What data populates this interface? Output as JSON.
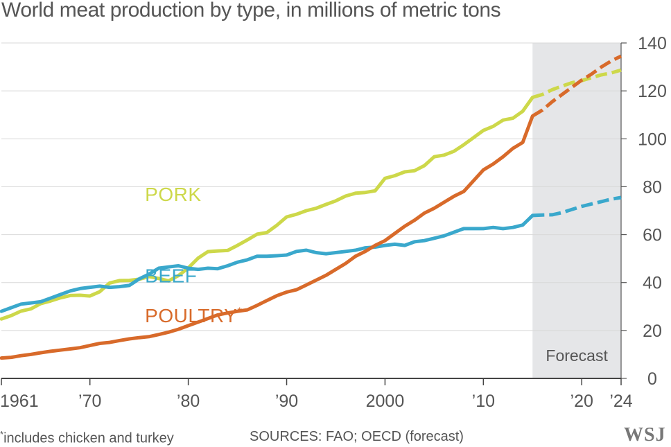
{
  "title": "World meat production by type, in millions of metric tons",
  "footnote_mark": "*",
  "footnote_text": "includes chicken and turkey",
  "sources": "SOURCES: FAO; OECD (forecast)",
  "logo": "WSJ",
  "colors": {
    "pork": "#cdd84a",
    "beef": "#3aa8cc",
    "poultry": "#d86a2a",
    "forecast_bg": "#e5e6e8",
    "axis": "#555555",
    "grid": "#d8d8d8"
  },
  "chart_data": {
    "type": "line",
    "title": "World meat production by type, in millions of metric tons",
    "xlabel": "",
    "ylabel": "",
    "xlim": [
      1961,
      2024
    ],
    "ylim": [
      0,
      140
    ],
    "grid": true,
    "forecast": {
      "label": "Forecast",
      "start": 2015,
      "end": 2024
    },
    "x_ticks": [
      {
        "value": 1961,
        "label": "1961"
      },
      {
        "value": 1970,
        "label": "’70"
      },
      {
        "value": 1980,
        "label": "’80"
      },
      {
        "value": 1990,
        "label": "’90"
      },
      {
        "value": 2000,
        "label": "2000"
      },
      {
        "value": 2010,
        "label": "’10"
      },
      {
        "value": 2020,
        "label": "’20"
      },
      {
        "value": 2024,
        "label": "’24"
      }
    ],
    "y_ticks": [
      {
        "value": 0,
        "label": "0"
      },
      {
        "value": 20,
        "label": "20"
      },
      {
        "value": 40,
        "label": "40"
      },
      {
        "value": 60,
        "label": "60"
      },
      {
        "value": 80,
        "label": "80"
      },
      {
        "value": 100,
        "label": "100"
      },
      {
        "value": 120,
        "label": "120"
      },
      {
        "value": 140,
        "label": "140"
      }
    ],
    "series": [
      {
        "key": "pork",
        "name": "PORK",
        "label_year": 1975.6,
        "label_value": 74,
        "x": [
          1961,
          1962,
          1963,
          1964,
          1965,
          1966,
          1967,
          1968,
          1969,
          1970,
          1971,
          1972,
          1973,
          1974,
          1975,
          1976,
          1977,
          1978,
          1979,
          1980,
          1981,
          1982,
          1983,
          1984,
          1985,
          1986,
          1987,
          1988,
          1989,
          1990,
          1991,
          1992,
          1993,
          1994,
          1995,
          1996,
          1997,
          1998,
          1999,
          2000,
          2001,
          2002,
          2003,
          2004,
          2005,
          2006,
          2007,
          2008,
          2009,
          2010,
          2011,
          2012,
          2013,
          2014,
          2015,
          2016,
          2017,
          2018,
          2019,
          2020,
          2021,
          2022,
          2023,
          2024
        ],
        "values": [
          24.8,
          26.2,
          28.1,
          29.0,
          31.2,
          32.3,
          33.6,
          34.6,
          34.7,
          34.4,
          36.2,
          39.8,
          40.8,
          40.9,
          41.4,
          42.5,
          41.7,
          40.7,
          42.9,
          46.1,
          50.2,
          52.9,
          53.2,
          53.4,
          55.5,
          57.8,
          60.2,
          60.9,
          63.9,
          67.4,
          68.5,
          70.0,
          71.0,
          72.6,
          74.1,
          76.1,
          77.3,
          77.6,
          78.3,
          83.5,
          84.6,
          86.2,
          86.7,
          88.8,
          92.5,
          93.2,
          94.8,
          97.5,
          100.5,
          103.5,
          105.2,
          107.8,
          108.6,
          111.5,
          117.3,
          118.5,
          120.5,
          122.0,
          123.4,
          124.3,
          125.5,
          126.7,
          127.5,
          128.7
        ],
        "forecast_from": 2015
      },
      {
        "key": "beef",
        "name": "BEEF",
        "label_year": 1975.6,
        "label_value": 40,
        "x": [
          1961,
          1962,
          1963,
          1964,
          1965,
          1966,
          1967,
          1968,
          1969,
          1970,
          1971,
          1972,
          1973,
          1974,
          1975,
          1976,
          1977,
          1978,
          1979,
          1980,
          1981,
          1982,
          1983,
          1984,
          1985,
          1986,
          1987,
          1988,
          1989,
          1990,
          1991,
          1992,
          1993,
          1994,
          1995,
          1996,
          1997,
          1998,
          1999,
          2000,
          2001,
          2002,
          2003,
          2004,
          2005,
          2006,
          2007,
          2008,
          2009,
          2010,
          2011,
          2012,
          2013,
          2014,
          2015,
          2016,
          2017,
          2018,
          2019,
          2020,
          2021,
          2022,
          2023,
          2024
        ],
        "values": [
          28.0,
          29.5,
          31.0,
          31.5,
          32.0,
          33.5,
          35.0,
          36.5,
          37.5,
          38.0,
          38.5,
          38.0,
          38.3,
          38.8,
          41.5,
          43.5,
          46.0,
          46.5,
          47.0,
          46.0,
          45.5,
          46.0,
          45.8,
          47.0,
          48.5,
          49.5,
          51.0,
          51.0,
          51.2,
          51.5,
          53.0,
          53.5,
          52.5,
          52.0,
          52.5,
          53.0,
          53.5,
          54.5,
          54.8,
          55.5,
          56.0,
          55.5,
          57.0,
          57.5,
          58.5,
          59.5,
          61.0,
          62.5,
          62.5,
          62.5,
          63.0,
          62.5,
          63.0,
          64.0,
          68.0,
          68.2,
          68.3,
          69.2,
          70.5,
          71.8,
          72.8,
          73.8,
          74.8,
          75.5
        ],
        "forecast_from": 2015
      },
      {
        "key": "poultry",
        "name": "POULTRY",
        "name_mark": "*",
        "label_year": 1975.6,
        "label_value": 23.5,
        "x": [
          1961,
          1962,
          1963,
          1964,
          1965,
          1966,
          1967,
          1968,
          1969,
          1970,
          1971,
          1972,
          1973,
          1974,
          1975,
          1976,
          1977,
          1978,
          1979,
          1980,
          1981,
          1982,
          1983,
          1984,
          1985,
          1986,
          1987,
          1988,
          1989,
          1990,
          1991,
          1992,
          1993,
          1994,
          1995,
          1996,
          1997,
          1998,
          1999,
          2000,
          2001,
          2002,
          2003,
          2004,
          2005,
          2006,
          2007,
          2008,
          2009,
          2010,
          2011,
          2012,
          2013,
          2014,
          2015,
          2016,
          2017,
          2018,
          2019,
          2020,
          2021,
          2022,
          2023,
          2024
        ],
        "values": [
          8.5,
          8.8,
          9.5,
          10.0,
          10.7,
          11.3,
          11.8,
          12.3,
          12.8,
          13.7,
          14.6,
          15.0,
          15.8,
          16.5,
          17.0,
          17.4,
          18.3,
          19.3,
          20.5,
          22.0,
          23.5,
          25.0,
          26.5,
          27.3,
          28.0,
          28.6,
          30.5,
          32.5,
          34.5,
          36.0,
          37.0,
          39.0,
          41.0,
          43.0,
          45.5,
          48.0,
          51.0,
          53.0,
          55.5,
          57.5,
          60.5,
          63.5,
          66.0,
          69.0,
          71.0,
          73.5,
          76.0,
          78.0,
          82.5,
          87.0,
          89.5,
          92.5,
          96.0,
          98.5,
          109.5,
          112.0,
          115.5,
          118.5,
          121.5,
          124.5,
          127.0,
          130.0,
          132.5,
          134.5
        ],
        "forecast_from": 2015
      }
    ]
  }
}
